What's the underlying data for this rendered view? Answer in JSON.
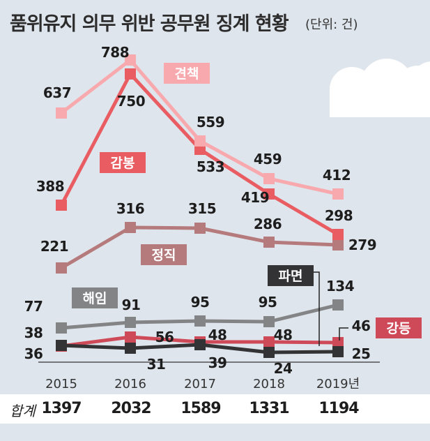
{
  "title": "품위유지 의무 위반 공무원 징계 현황",
  "unit": "(단위: 건)",
  "colors": {
    "견책": "#f7a9ad",
    "감봉": "#e85c62",
    "정직": "#b57a7c",
    "해임": "#838486",
    "파면": "#333335",
    "강등": "#cf4a58"
  },
  "chart_data": {
    "type": "line",
    "title": "품위유지 의무 위반 공무원 징계 현황",
    "x": [
      "2015",
      "2016",
      "2017",
      "2018",
      "2019년"
    ],
    "ylim": [
      0,
      820
    ],
    "grid": false,
    "series": [
      {
        "name": "견책",
        "values": [
          637,
          788,
          559,
          459,
          412
        ]
      },
      {
        "name": "감봉",
        "values": [
          388,
          750,
          533,
          419,
          298
        ]
      },
      {
        "name": "정직",
        "values": [
          221,
          316,
          315,
          286,
          279
        ]
      },
      {
        "name": "해임",
        "values": [
          77,
          91,
          95,
          95,
          134
        ]
      },
      {
        "name": "파면",
        "values": [
          38,
          31,
          39,
          24,
          25
        ]
      },
      {
        "name": "강등",
        "values": [
          36,
          56,
          48,
          48,
          46
        ]
      }
    ]
  },
  "totals": {
    "label": "합계",
    "values": [
      "1397",
      "2032",
      "1589",
      "1331",
      "1194"
    ]
  }
}
